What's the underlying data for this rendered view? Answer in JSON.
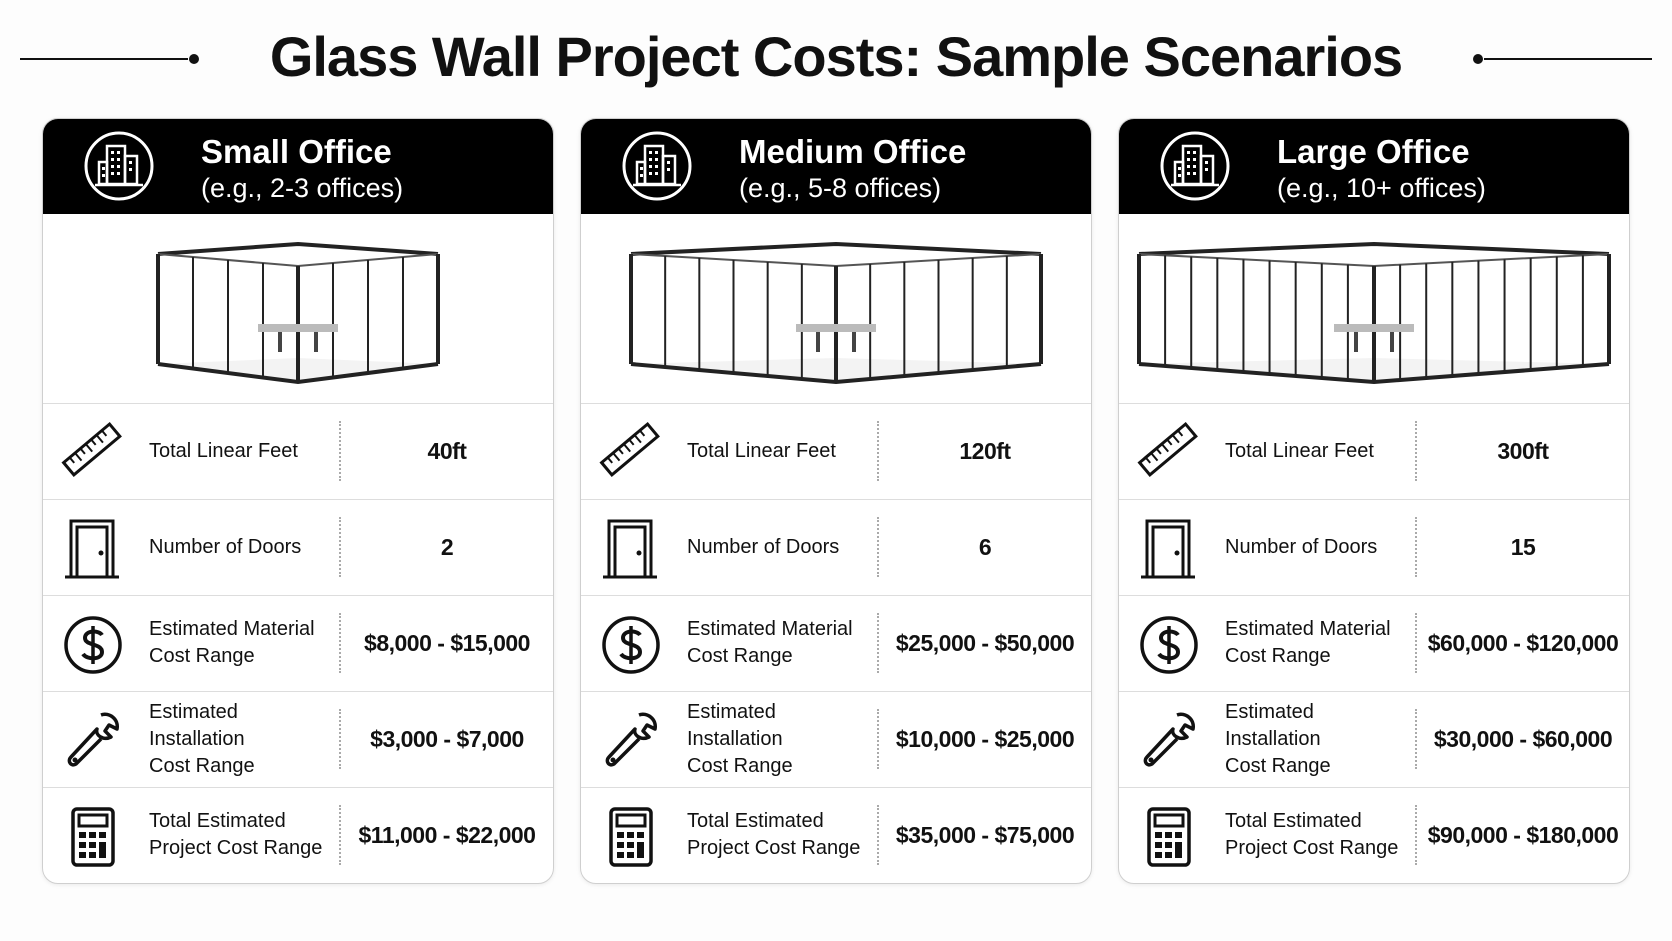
{
  "title": "Glass Wall Project Costs: Sample Scenarios",
  "cards": [
    {
      "title": "Small Office",
      "subtitle": "(e.g., 2-3 offices)",
      "rows": [
        {
          "label": "Total Linear Feet",
          "value": "40ft"
        },
        {
          "label": "Number of Doors",
          "value": "2"
        },
        {
          "label": "Estimated Material\nCost Range",
          "value": "$8,000 - $15,000"
        },
        {
          "label": "Estimated Installation\nCost Range",
          "value": "$3,000 - $7,000"
        },
        {
          "label": "Total Estimated\nProject Cost Range",
          "value": "$11,000 - $22,000"
        }
      ]
    },
    {
      "title": "Medium Office",
      "subtitle": "(e.g., 5-8 offices)",
      "rows": [
        {
          "label": "Total Linear Feet",
          "value": "120ft"
        },
        {
          "label": "Number of Doors",
          "value": "6"
        },
        {
          "label": "Estimated Material\nCost Range",
          "value": "$25,000 - $50,000"
        },
        {
          "label": "Estimated Installation\nCost Range",
          "value": "$10,000 - $25,000"
        },
        {
          "label": "Total Estimated\nProject Cost Range",
          "value": "$35,000 - $75,000"
        }
      ]
    },
    {
      "title": "Large Office",
      "subtitle": "(e.g., 10+ offices)",
      "rows": [
        {
          "label": "Total Linear Feet",
          "value": "300ft"
        },
        {
          "label": "Number of Doors",
          "value": "15"
        },
        {
          "label": "Estimated Material\nCost Range",
          "value": "$60,000 - $120,000"
        },
        {
          "label": "Estimated Installation\nCost Range",
          "value": "$30,000 - $60,000"
        },
        {
          "label": "Total Estimated\nProject Cost Range",
          "value": "$90,000 - $180,000"
        }
      ]
    }
  ]
}
